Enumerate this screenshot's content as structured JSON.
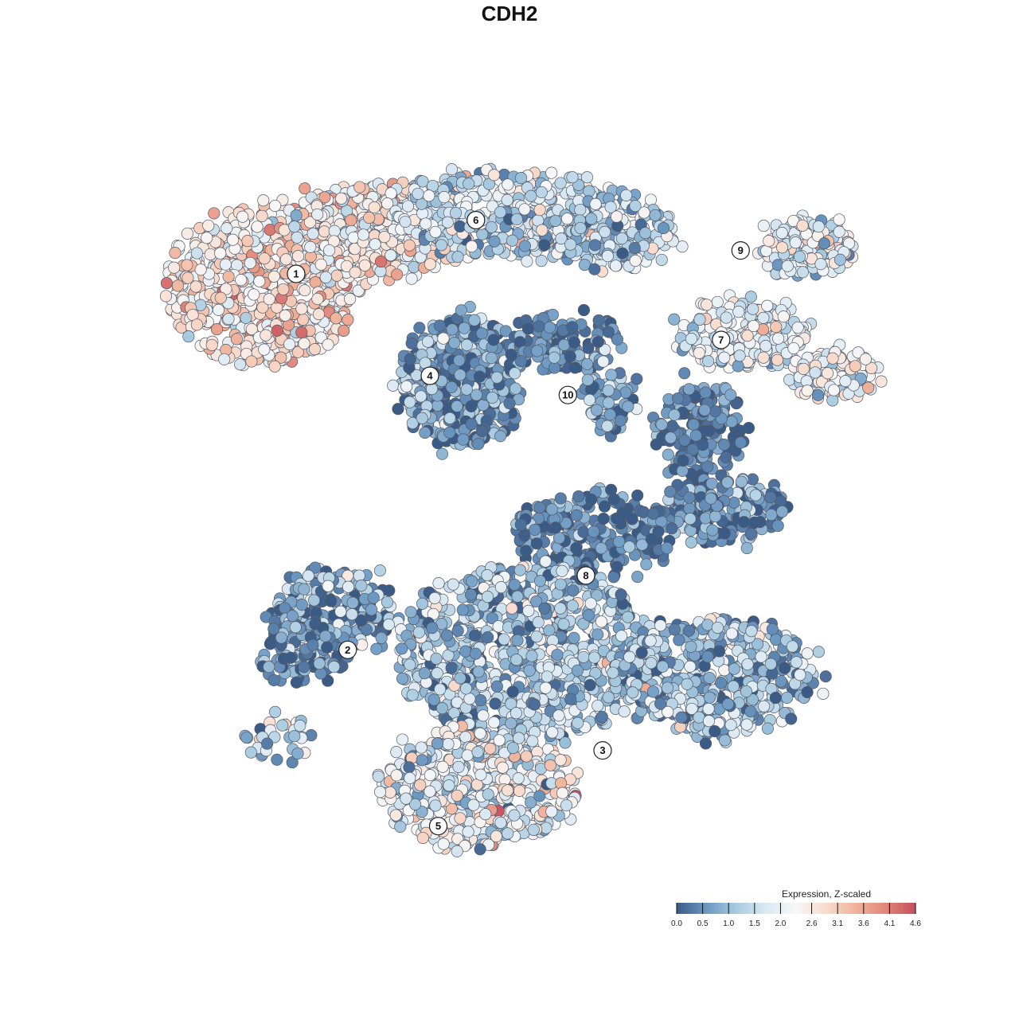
{
  "chart_data": {
    "type": "scatter",
    "title": "CDH2",
    "xlabel": "",
    "ylabel": "",
    "grid": false,
    "legend": {
      "title": "Expression, Z-scaled",
      "placement": "bottom-right",
      "min": 0.0,
      "max": 4.6,
      "ticks": [
        {
          "value": 0.0,
          "label": "0.0"
        },
        {
          "value": 0.5,
          "label": "0.5"
        },
        {
          "value": 1.0,
          "label": "1.0"
        },
        {
          "value": 1.5,
          "label": "1.5"
        },
        {
          "value": 2.0,
          "label": "2.0"
        },
        {
          "value": 2.6,
          "label": "2.6"
        },
        {
          "value": 3.1,
          "label": "3.1"
        },
        {
          "value": 3.6,
          "label": "3.6"
        },
        {
          "value": 4.1,
          "label": "4.1"
        },
        {
          "value": 4.6,
          "label": "4.6"
        }
      ],
      "colors": [
        "#3b5b87",
        "#6c98c2",
        "#a9cbe0",
        "#dbe9f3",
        "#f7f7f7",
        "#f9dccd",
        "#f0b39b",
        "#e0867a",
        "#c44e5c"
      ]
    },
    "clusters": [
      {
        "label": "1",
        "x": 0.0,
        "y": 12.2
      },
      {
        "label": "2",
        "x": 3.7,
        "y": -15.1
      },
      {
        "label": "3",
        "x": 22.0,
        "y": -22.4
      },
      {
        "label": "4",
        "x": 9.6,
        "y": 4.8
      },
      {
        "label": "5",
        "x": 10.2,
        "y": -27.9
      },
      {
        "label": "6",
        "x": 12.9,
        "y": 16.1
      },
      {
        "label": "7",
        "x": 30.5,
        "y": 7.4
      },
      {
        "label": "8",
        "x": 20.8,
        "y": -9.7
      },
      {
        "label": "9",
        "x": 31.9,
        "y": 13.9
      },
      {
        "label": "10",
        "x": 19.5,
        "y": 3.4
      }
    ]
  }
}
